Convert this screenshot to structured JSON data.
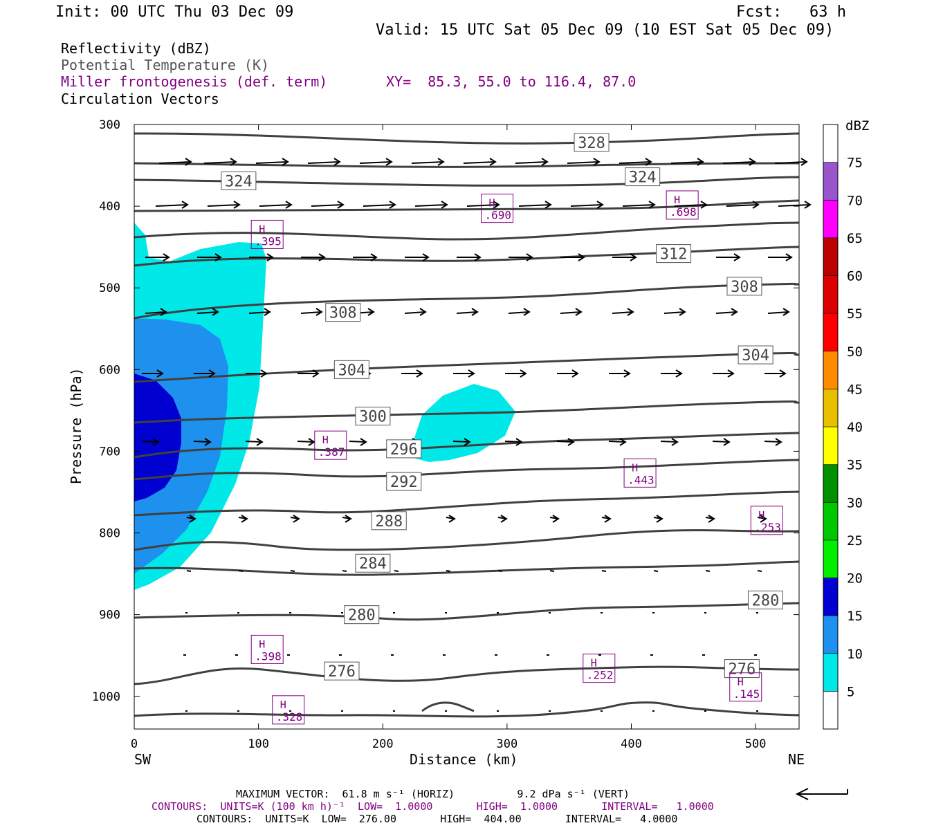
{
  "header": {
    "init": "Init: 00 UTC Thu 03 Dec 09",
    "fcst": "Fcst:   63 h",
    "valid": "Valid: 15 UTC Sat 05 Dec 09 (10 EST Sat 05 Dec 09)"
  },
  "legend_titles": {
    "reflectivity": "Reflectivity (dBZ)",
    "theta": "Potential Temperature (K)",
    "miller": "Miller frontogenesis (def. term)",
    "xy": "XY=  85.3, 55.0 to 116.4, 87.0",
    "circ": "Circulation Vectors"
  },
  "footer": {
    "max_vector": "MAXIMUM VECTOR:  61.8 m s⁻¹ (HORIZ)          9.2 dPa s⁻¹ (VERT)",
    "contours1": "CONTOURS:  UNITS=K (100 km h)⁻¹  LOW=  1.0000       HIGH=  1.0000       INTERVAL=   1.0000",
    "contours2": "CONTOURS:  UNITS=K  LOW=  276.00       HIGH=  404.00       INTERVAL=   4.0000"
  },
  "colors": {
    "frame": "#000000",
    "theta_line": "#404040",
    "miller": "#800080",
    "dbz_5": "#00e8e8",
    "dbz_10": "#1e90ee",
    "dbz_15": "#0000d0"
  },
  "chart_data": {
    "type": "cross-section",
    "title": "",
    "xlabel": "Distance (km)",
    "ylabel": "Pressure (hPa)",
    "xlim": [
      0,
      535
    ],
    "ylim": [
      1040,
      300
    ],
    "x_ticks": [
      0,
      100,
      200,
      300,
      400,
      500
    ],
    "y_ticks": [
      300,
      400,
      500,
      600,
      700,
      800,
      900,
      1000
    ],
    "x_end_labels": {
      "left": "SW",
      "right": "NE"
    },
    "colorbar": {
      "label": "dBZ",
      "ticks": [
        5,
        10,
        15,
        20,
        25,
        30,
        35,
        40,
        45,
        50,
        55,
        60,
        65,
        70,
        75
      ],
      "colors": [
        "#ffffff",
        "#00e8e8",
        "#1e90ee",
        "#0000d0",
        "#00ee00",
        "#00c800",
        "#009000",
        "#ffff00",
        "#e8c000",
        "#ff8c00",
        "#ff0000",
        "#dd0000",
        "#bb0000",
        "#ff00ff",
        "#9955cc",
        "#ffffff"
      ]
    },
    "theta_contour_labels": [
      {
        "value": "328",
        "x": 368,
        "p": 322
      },
      {
        "value": "324",
        "x": 84,
        "p": 369
      },
      {
        "value": "324",
        "x": 409,
        "p": 364
      },
      {
        "value": "312",
        "x": 434,
        "p": 458
      },
      {
        "value": "308",
        "x": 168,
        "p": 530
      },
      {
        "value": "308",
        "x": 491,
        "p": 498
      },
      {
        "value": "304",
        "x": 175,
        "p": 600
      },
      {
        "value": "304",
        "x": 500,
        "p": 582
      },
      {
        "value": "300",
        "x": 192,
        "p": 657
      },
      {
        "value": "296",
        "x": 217,
        "p": 697
      },
      {
        "value": "292",
        "x": 217,
        "p": 737
      },
      {
        "value": "288",
        "x": 205,
        "p": 785
      },
      {
        "value": "284",
        "x": 192,
        "p": 837
      },
      {
        "value": "280",
        "x": 183,
        "p": 900
      },
      {
        "value": "280",
        "x": 508,
        "p": 882
      },
      {
        "value": "276",
        "x": 167,
        "p": 969
      },
      {
        "value": "276",
        "x": 489,
        "p": 966
      }
    ],
    "miller_maxima": [
      {
        "label": "H",
        "value": ".395",
        "x": 107,
        "p": 435
      },
      {
        "label": "H",
        "value": ".690",
        "x": 292,
        "p": 403
      },
      {
        "label": "H",
        "value": ".698",
        "x": 441,
        "p": 399
      },
      {
        "label": "H",
        "value": ".387",
        "x": 158,
        "p": 693
      },
      {
        "label": "H",
        "value": ".443",
        "x": 407,
        "p": 727
      },
      {
        "label": "H",
        "value": ".253",
        "x": 509,
        "p": 785
      },
      {
        "label": "H",
        "value": ".398",
        "x": 107,
        "p": 943
      },
      {
        "label": "H",
        "value": ".252",
        "x": 374,
        "p": 966
      },
      {
        "label": "H",
        "value": ".145",
        "x": 492,
        "p": 989
      },
      {
        "label": "H",
        "value": ".328",
        "x": 124,
        "p": 1017
      }
    ],
    "theta_contours_K": [
      328,
      324,
      320,
      316,
      312,
      308,
      304,
      300,
      296,
      292,
      288,
      284,
      280,
      276
    ]
  }
}
